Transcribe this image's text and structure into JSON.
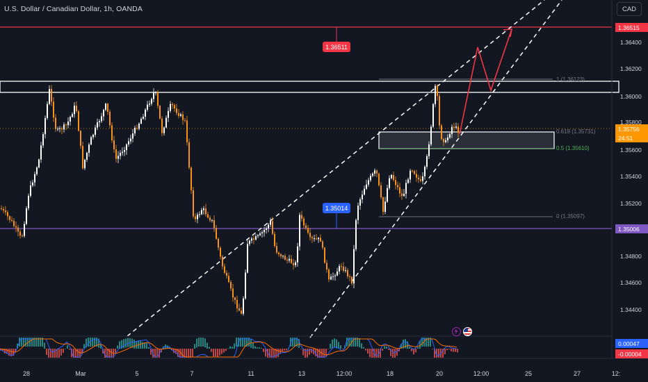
{
  "header": {
    "symbol_title": "U.S. Dollar / Canadian Dollar, 1h, OANDA"
  },
  "toolbar": {
    "currency_label": "CAD"
  },
  "price_axis": {
    "ticks": [
      "1.36400",
      "1.36200",
      "1.36000",
      "1.35800",
      "1.35600",
      "1.35400",
      "1.35200",
      "1.34800",
      "1.34600",
      "1.34400"
    ],
    "target_tag": "1.36515",
    "current_price_tag": "1.35756",
    "countdown": "24:51",
    "support_tag": "1.35006",
    "macd_tag_positive": "0.00047",
    "macd_tag_negative": "-0.00004"
  },
  "callouts": {
    "target_callout": "1.36511",
    "support_callout": "1.35014"
  },
  "fibonacci": {
    "level_1": "1 (1.36123)",
    "level_0618": "0.618 (1.35731)",
    "level_05": "0.5 (1.35610)",
    "level_0": "0 (1.35097)"
  },
  "time_axis": {
    "labels": [
      "28",
      "Mar",
      "5",
      "7",
      "11",
      "13",
      "12:00",
      "18",
      "20",
      "12:00",
      "25",
      "27",
      "12:"
    ]
  },
  "colors": {
    "background": "#131722",
    "bull_candle": "#ffffff",
    "bear_candle": "#f7931a",
    "resistance_line": "#f23645",
    "support_line": "#7e57c2",
    "fib_zone": "#2a2e39",
    "projection_arrow": "#f23645",
    "current_price": "#ff9800",
    "macd_tag": "#2962ff",
    "fib_text": "#787b86",
    "fib_text_green": "#4caf50"
  },
  "icons": {
    "event_flash": "lightning-icon",
    "event_flag": "us-flag-icon"
  }
}
